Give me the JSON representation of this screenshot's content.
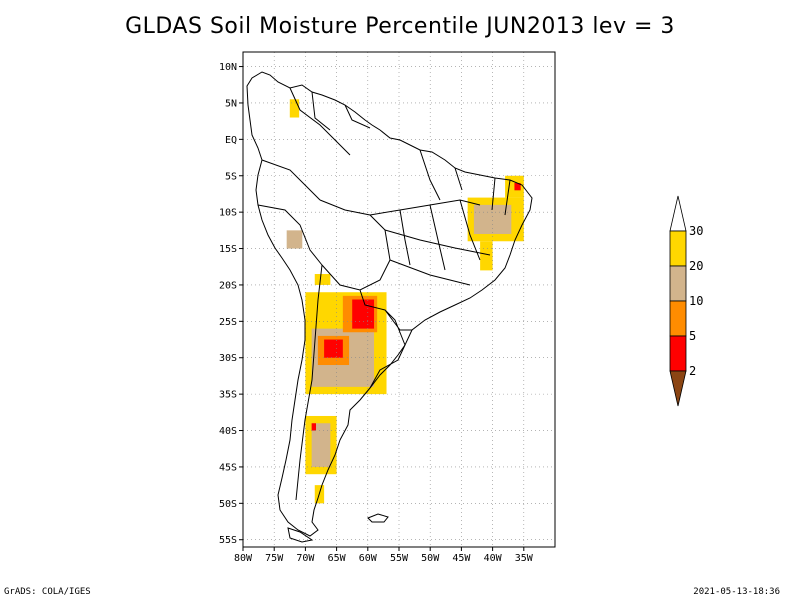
{
  "title": "GLDAS Soil Moisture Percentile JUN2013 lev = 3",
  "footer": {
    "left": "GrADS: COLA/IGES",
    "right": "2021-05-13-18:36"
  },
  "map": {
    "lon_range": [
      -80,
      -30
    ],
    "lat_range": [
      -56,
      12
    ],
    "x_ticks": [
      {
        "lon": -80,
        "label": "80W"
      },
      {
        "lon": -75,
        "label": "75W"
      },
      {
        "lon": -70,
        "label": "70W"
      },
      {
        "lon": -65,
        "label": "65W"
      },
      {
        "lon": -60,
        "label": "60W"
      },
      {
        "lon": -55,
        "label": "55W"
      },
      {
        "lon": -50,
        "label": "50W"
      },
      {
        "lon": -45,
        "label": "45W"
      },
      {
        "lon": -40,
        "label": "40W"
      },
      {
        "lon": -35,
        "label": "35W"
      }
    ],
    "y_ticks": [
      {
        "lat": 10,
        "label": "10N"
      },
      {
        "lat": 5,
        "label": "5N"
      },
      {
        "lat": 0,
        "label": "EQ"
      },
      {
        "lat": -5,
        "label": "5S"
      },
      {
        "lat": -10,
        "label": "10S"
      },
      {
        "lat": -15,
        "label": "15S"
      },
      {
        "lat": -20,
        "label": "20S"
      },
      {
        "lat": -25,
        "label": "25S"
      },
      {
        "lat": -30,
        "label": "30S"
      },
      {
        "lat": -35,
        "label": "35S"
      },
      {
        "lat": -40,
        "label": "40S"
      },
      {
        "lat": -45,
        "label": "45S"
      },
      {
        "lat": -50,
        "label": "50S"
      },
      {
        "lat": -55,
        "label": "55S"
      }
    ],
    "grid": true
  },
  "legend": {
    "colors": [
      "#8b4513",
      "#ff0000",
      "#ff8c00",
      "#d2b48c",
      "#ffd700",
      "#ffffff"
    ],
    "labels": [
      "2",
      "5",
      "10",
      "20",
      "30"
    ]
  },
  "regions": [
    {
      "class": "20-30",
      "color": "#ffd700",
      "lon": [
        -72.5,
        -71
      ],
      "lat": [
        5.5,
        3
      ]
    },
    {
      "class": "20-30",
      "color": "#ffd700",
      "lon": [
        -44,
        -35
      ],
      "lat": [
        -8,
        -14
      ]
    },
    {
      "class": "10-20",
      "color": "#d2b48c",
      "lon": [
        -43,
        -37
      ],
      "lat": [
        -9,
        -13
      ]
    },
    {
      "class": "20-30",
      "color": "#ffd700",
      "lon": [
        -38,
        -35
      ],
      "lat": [
        -5,
        -8
      ]
    },
    {
      "class": "2-5",
      "color": "#ff0000",
      "lon": [
        -36.5,
        -35.5
      ],
      "lat": [
        -6,
        -7
      ]
    },
    {
      "class": "20-30",
      "color": "#ffd700",
      "lon": [
        -42,
        -40
      ],
      "lat": [
        -14,
        -18
      ]
    },
    {
      "class": "10-20",
      "color": "#d2b48c",
      "lon": [
        -73,
        -70.5
      ],
      "lat": [
        -12.5,
        -15
      ]
    },
    {
      "class": "20-30",
      "color": "#ffd700",
      "lon": [
        -68.5,
        -66
      ],
      "lat": [
        -18.5,
        -20
      ]
    },
    {
      "class": "20-30",
      "color": "#ffd700",
      "lon": [
        -70,
        -57
      ],
      "lat": [
        -21,
        -35
      ]
    },
    {
      "class": "10-20",
      "color": "#d2b48c",
      "lon": [
        -69,
        -59
      ],
      "lat": [
        -26,
        -34
      ]
    },
    {
      "class": "5-10",
      "color": "#ff8c00",
      "lon": [
        -64,
        -58.5
      ],
      "lat": [
        -21.5,
        -26.5
      ]
    },
    {
      "class": "2-5",
      "color": "#ff0000",
      "lon": [
        -62.5,
        -59
      ],
      "lat": [
        -22,
        -26
      ]
    },
    {
      "class": "5-10",
      "color": "#ff8c00",
      "lon": [
        -68,
        -63
      ],
      "lat": [
        -27,
        -31
      ]
    },
    {
      "class": "2-5",
      "color": "#ff0000",
      "lon": [
        -67,
        -64
      ],
      "lat": [
        -27.5,
        -30
      ]
    },
    {
      "class": "20-30",
      "color": "#ffd700",
      "lon": [
        -70,
        -65
      ],
      "lat": [
        -38,
        -46
      ]
    },
    {
      "class": "10-20",
      "color": "#d2b48c",
      "lon": [
        -69,
        -66
      ],
      "lat": [
        -39,
        -45
      ]
    },
    {
      "class": "2-5",
      "color": "#ff0000",
      "lon": [
        -69,
        -68.3
      ],
      "lat": [
        -39,
        -40
      ]
    },
    {
      "class": "20-30",
      "color": "#ffd700",
      "lon": [
        -68.5,
        -67
      ],
      "lat": [
        -47.5,
        -50
      ]
    }
  ]
}
